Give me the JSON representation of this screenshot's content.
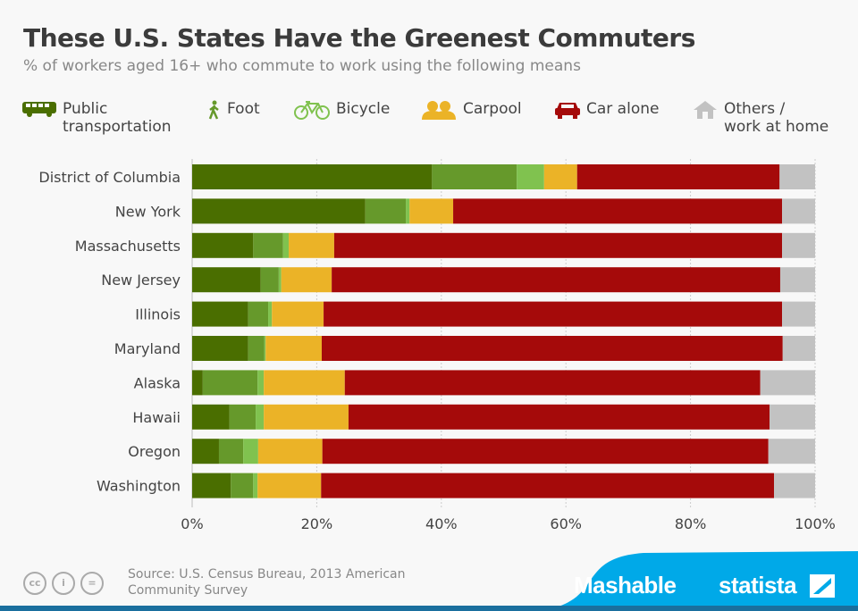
{
  "title": "These U.S. States Have the Greenest Commuters",
  "subtitle": "% of workers aged 16+ who commute to work using the following means",
  "legend": [
    {
      "label1": "Public",
      "label2": "transportation",
      "icon": "bus-icon",
      "color": "#4a6e00"
    },
    {
      "label1": "Foot",
      "label2": "",
      "icon": "walking-person-icon",
      "color": "#66992b"
    },
    {
      "label1": "Bicycle",
      "label2": "",
      "icon": "bicycle-icon",
      "color": "#80c24f"
    },
    {
      "label1": "Carpool",
      "label2": "",
      "icon": "people-icon",
      "color": "#ebb327"
    },
    {
      "label1": "Car alone",
      "label2": "",
      "icon": "car-icon",
      "color": "#a50a0a"
    },
    {
      "label1": "Others /",
      "label2": "work at home",
      "icon": "house-icon",
      "color": "#c2c2c2"
    }
  ],
  "chart_data": {
    "type": "bar",
    "orientation": "horizontal",
    "stacked": true,
    "categories": [
      "District of Columbia",
      "New York",
      "Massachusetts",
      "New Jersey",
      "Illinois",
      "Maryland",
      "Alaska",
      "Hawaii",
      "Oregon",
      "Washington"
    ],
    "series": [
      {
        "name": "Public transportation",
        "color": "#4a6e00",
        "values": [
          38.5,
          27.8,
          9.8,
          11.0,
          9.0,
          9.0,
          1.7,
          6.0,
          4.3,
          6.2
        ]
      },
      {
        "name": "Foot",
        "color": "#66992b",
        "values": [
          13.6,
          6.5,
          4.8,
          2.9,
          3.2,
          2.6,
          8.8,
          4.2,
          3.9,
          3.6
        ]
      },
      {
        "name": "Bicycle",
        "color": "#80c24f",
        "values": [
          4.4,
          0.6,
          0.9,
          0.4,
          0.6,
          0.2,
          1.0,
          1.3,
          2.4,
          0.7
        ]
      },
      {
        "name": "Carpool",
        "color": "#ebb327",
        "values": [
          5.3,
          7.0,
          7.3,
          8.1,
          8.3,
          9.0,
          13.0,
          13.6,
          10.3,
          10.2
        ]
      },
      {
        "name": "Car alone",
        "color": "#a50a0a",
        "values": [
          32.5,
          52.8,
          71.9,
          72.0,
          73.6,
          74.0,
          66.7,
          67.6,
          71.6,
          72.7
        ]
      },
      {
        "name": "Others / work at home",
        "color": "#c2c2c2",
        "values": [
          5.7,
          5.3,
          5.3,
          5.6,
          5.3,
          5.2,
          8.8,
          7.3,
          7.5,
          6.6
        ]
      }
    ],
    "xlim": [
      0,
      100
    ],
    "xticks": [
      "0%",
      "20%",
      "40%",
      "60%",
      "80%",
      "100%"
    ],
    "grid": true,
    "legend_position": "top"
  },
  "footer": {
    "source_line1": "Source: U.S. Census Bureau, 2013 American",
    "source_line2": "Community Survey",
    "cc_labels": [
      "cc",
      "i",
      "="
    ],
    "brand1": "Mashable",
    "brand2": "statista",
    "brand_color": "#00a9e8"
  }
}
